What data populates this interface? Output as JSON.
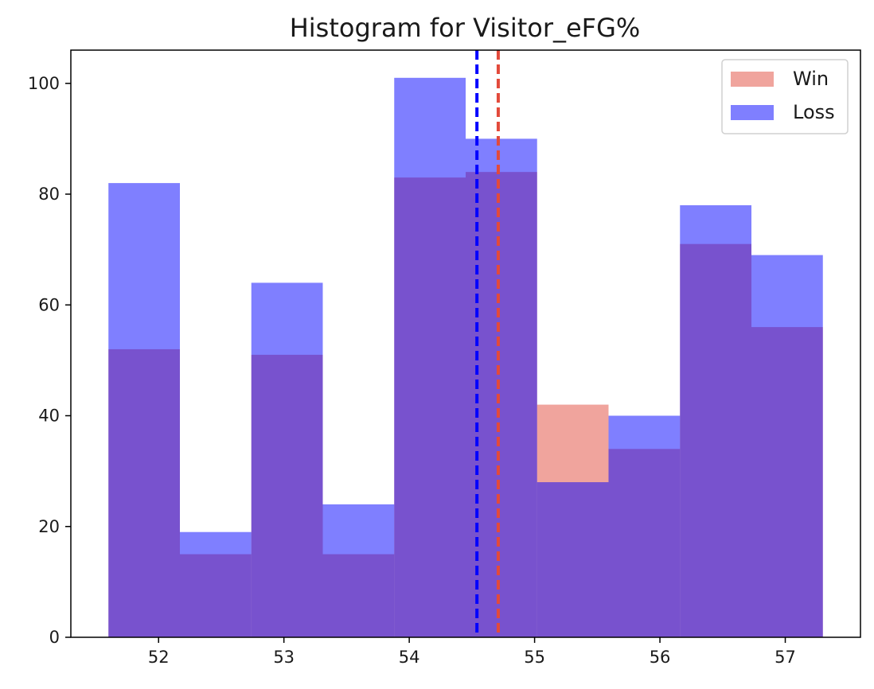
{
  "chart_data": {
    "type": "bar",
    "title": "Histogram for Visitor_eFG%",
    "xlabel": "",
    "ylabel": "",
    "xlim": [
      51.3,
      57.6
    ],
    "ylim": [
      0,
      106
    ],
    "x_ticks": [
      52,
      53,
      54,
      55,
      56,
      57
    ],
    "y_ticks": [
      0,
      20,
      40,
      60,
      80,
      100
    ],
    "bin_edges": [
      51.6,
      52.17,
      52.74,
      53.31,
      53.88,
      54.45,
      55.02,
      55.59,
      56.16,
      56.73,
      57.3
    ],
    "series": [
      {
        "name": "Win",
        "color": "#e24a3b",
        "values": [
          52,
          15,
          51,
          15,
          83,
          84,
          42,
          34,
          71,
          56
        ]
      },
      {
        "name": "Loss",
        "color": "#0000ff",
        "values": [
          82,
          19,
          64,
          24,
          101,
          90,
          28,
          40,
          78,
          69
        ]
      }
    ],
    "mean_lines": [
      {
        "series": "Loss",
        "x": 54.54,
        "color": "#0000ff",
        "style": "dashed"
      },
      {
        "series": "Win",
        "x": 54.71,
        "color": "#e24a3b",
        "style": "dashed"
      }
    ],
    "legend_position": "top-right",
    "grid": false
  }
}
